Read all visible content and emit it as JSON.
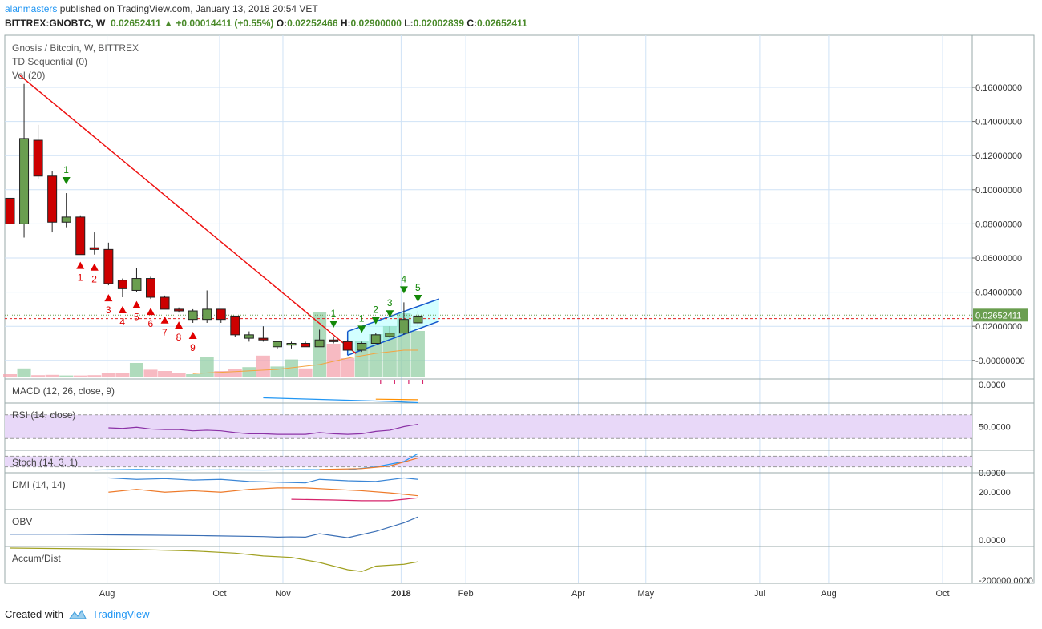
{
  "header": {
    "author": "alanmasters",
    "published_text": "published on TradingView.com, January 13, 2018 20:54 VET"
  },
  "ohlc_line": {
    "symbol": "BITTREX:GNOBTC, W",
    "last": "0.02652411",
    "change": "+0.00014411 (+0.55%)",
    "o_label": "O:",
    "o": "0.02252466",
    "h_label": "H:",
    "h": "0.02900000",
    "l_label": "L:",
    "l": "0.02002839",
    "c_label": "C:",
    "c": "0.02652411"
  },
  "footer": {
    "created_with": "Created with",
    "brand": "TradingView"
  },
  "chart_data": {
    "type": "candlestick",
    "title": "Gnosis / Bitcoin, W, BITTREX",
    "indicators": [
      "TD Sequential (0)",
      "Vol (20)"
    ],
    "price_axis": {
      "ticks": [
        0.16,
        0.14,
        0.12,
        0.1,
        0.08,
        0.06,
        0.04,
        0.02,
        0.0
      ],
      "tick_labels": [
        "0.16000000",
        "0.14000000",
        "0.12000000",
        "0.10000000",
        "0.08000000",
        "0.06000000",
        "0.04000000",
        "0.02000000",
        "-0.00000000"
      ],
      "ylim": [
        -0.002,
        0.172
      ],
      "last_price_label": "0.02652411",
      "last_price": 0.02652411,
      "prev_close_line": 0.0245
    },
    "x_axis": {
      "labels": [
        "Aug",
        "Oct",
        "Nov",
        "2018",
        "Feb",
        "Apr",
        "May",
        "Jul",
        "Aug",
        "Oct"
      ],
      "positions_week_index": [
        6.9,
        14.9,
        19.4,
        27.8,
        32.4,
        40.4,
        45.2,
        53.3,
        58.2,
        66.3
      ]
    },
    "candles": [
      {
        "o": 0.095,
        "h": 0.098,
        "l": 0.08,
        "c": 0.08
      },
      {
        "o": 0.08,
        "h": 0.162,
        "l": 0.072,
        "c": 0.13
      },
      {
        "o": 0.129,
        "h": 0.138,
        "l": 0.106,
        "c": 0.108
      },
      {
        "o": 0.108,
        "h": 0.111,
        "l": 0.075,
        "c": 0.081
      },
      {
        "o": 0.081,
        "h": 0.098,
        "l": 0.078,
        "c": 0.084
      },
      {
        "o": 0.084,
        "h": 0.085,
        "l": 0.063,
        "c": 0.062
      },
      {
        "o": 0.066,
        "h": 0.075,
        "l": 0.062,
        "c": 0.065
      },
      {
        "o": 0.065,
        "h": 0.069,
        "l": 0.044,
        "c": 0.045
      },
      {
        "o": 0.047,
        "h": 0.048,
        "l": 0.037,
        "c": 0.042
      },
      {
        "o": 0.041,
        "h": 0.054,
        "l": 0.04,
        "c": 0.048
      },
      {
        "o": 0.048,
        "h": 0.049,
        "l": 0.036,
        "c": 0.037
      },
      {
        "o": 0.037,
        "h": 0.038,
        "l": 0.031,
        "c": 0.03
      },
      {
        "o": 0.03,
        "h": 0.031,
        "l": 0.028,
        "c": 0.029
      },
      {
        "o": 0.024,
        "h": 0.03,
        "l": 0.022,
        "c": 0.029
      },
      {
        "o": 0.024,
        "h": 0.041,
        "l": 0.022,
        "c": 0.03
      },
      {
        "o": 0.03,
        "h": 0.03,
        "l": 0.022,
        "c": 0.024
      },
      {
        "o": 0.026,
        "h": 0.026,
        "l": 0.014,
        "c": 0.015
      },
      {
        "o": 0.013,
        "h": 0.017,
        "l": 0.011,
        "c": 0.015
      },
      {
        "o": 0.013,
        "h": 0.02,
        "l": 0.011,
        "c": 0.012
      },
      {
        "o": 0.008,
        "h": 0.011,
        "l": 0.007,
        "c": 0.011
      },
      {
        "o": 0.009,
        "h": 0.011,
        "l": 0.007,
        "c": 0.01
      },
      {
        "o": 0.01,
        "h": 0.011,
        "l": 0.008,
        "c": 0.008
      },
      {
        "o": 0.008,
        "h": 0.018,
        "l": 0.008,
        "c": 0.012
      },
      {
        "o": 0.012,
        "h": 0.014,
        "l": 0.01,
        "c": 0.011
      },
      {
        "o": 0.011,
        "h": 0.012,
        "l": 0.006,
        "c": 0.006
      },
      {
        "o": 0.006,
        "h": 0.011,
        "l": 0.005,
        "c": 0.01
      },
      {
        "o": 0.01,
        "h": 0.016,
        "l": 0.01,
        "c": 0.015
      },
      {
        "o": 0.014,
        "h": 0.02,
        "l": 0.013,
        "c": 0.016
      },
      {
        "o": 0.016,
        "h": 0.034,
        "l": 0.015,
        "c": 0.024
      },
      {
        "o": 0.022,
        "h": 0.029,
        "l": 0.02,
        "c": 0.026
      }
    ],
    "volume": [
      0.1,
      0.28,
      0.07,
      0.08,
      0.06,
      0.06,
      0.07,
      0.14,
      0.13,
      0.45,
      0.24,
      0.2,
      0.15,
      0.1,
      0.65,
      0.2,
      0.25,
      0.32,
      0.68,
      0.34,
      0.56,
      0.28,
      2.05,
      1.05,
      0.6,
      1.15,
      1.35,
      1.6,
      2.0,
      1.45
    ],
    "td_labels": [
      {
        "i": 4,
        "n": "1",
        "color": "#138808",
        "dir": "down"
      },
      {
        "i": 5,
        "n": "1",
        "color": "#e00000",
        "dir": "up"
      },
      {
        "i": 6,
        "n": "2",
        "color": "#e00000",
        "dir": "up"
      },
      {
        "i": 7,
        "n": "3",
        "color": "#e00000",
        "dir": "up"
      },
      {
        "i": 8,
        "n": "4",
        "color": "#e00000",
        "dir": "up"
      },
      {
        "i": 9,
        "n": "5",
        "color": "#e00000",
        "dir": "up"
      },
      {
        "i": 10,
        "n": "6",
        "color": "#e00000",
        "dir": "up"
      },
      {
        "i": 11,
        "n": "7",
        "color": "#e00000",
        "dir": "up"
      },
      {
        "i": 12,
        "n": "8",
        "color": "#e00000",
        "dir": "up"
      },
      {
        "i": 13,
        "n": "9",
        "color": "#e00000",
        "dir": "up"
      },
      {
        "i": 23,
        "n": "1",
        "color": "#138808",
        "dir": "down"
      },
      {
        "i": 25,
        "n": "1",
        "color": "#138808",
        "dir": "down"
      },
      {
        "i": 26,
        "n": "2",
        "color": "#138808",
        "dir": "down"
      },
      {
        "i": 27,
        "n": "3",
        "color": "#138808",
        "dir": "down"
      },
      {
        "i": 28,
        "n": "4",
        "color": "#138808",
        "dir": "down"
      },
      {
        "i": 29,
        "n": "5",
        "color": "#138808",
        "dir": "down"
      }
    ],
    "macd": {
      "label": "MACD (12, 26, close, 9)",
      "tick_label": "0.0000",
      "macd_line": [
        [
          18,
          -0.003
        ],
        [
          21,
          -0.002
        ],
        [
          24,
          -0.001
        ],
        [
          27,
          0.0
        ],
        [
          29,
          0.001
        ]
      ],
      "signal_line": [
        [
          26,
          -0.004
        ],
        [
          29,
          -0.003
        ]
      ]
    },
    "rsi": {
      "label": "RSI (14, close)",
      "tick_label": "50.0000",
      "band": [
        30,
        70
      ],
      "values": [
        [
          7,
          48
        ],
        [
          8,
          47
        ],
        [
          9,
          49
        ],
        [
          10,
          46
        ],
        [
          11,
          45
        ],
        [
          12,
          45
        ],
        [
          13,
          43
        ],
        [
          14,
          44
        ],
        [
          15,
          43
        ],
        [
          16,
          40
        ],
        [
          17,
          38
        ],
        [
          18,
          38
        ],
        [
          19,
          37
        ],
        [
          20,
          37
        ],
        [
          21,
          37
        ],
        [
          22,
          40
        ],
        [
          23,
          38
        ],
        [
          24,
          37
        ],
        [
          25,
          38
        ],
        [
          26,
          42
        ],
        [
          27,
          44
        ],
        [
          28,
          50
        ],
        [
          29,
          54
        ]
      ]
    },
    "stoch": {
      "label": "Stoch (14, 3, 1)",
      "tick_label": "0.0000",
      "k": [
        [
          6,
          2
        ],
        [
          9,
          5
        ],
        [
          12,
          2
        ],
        [
          15,
          3
        ],
        [
          18,
          2
        ],
        [
          21,
          4
        ],
        [
          24,
          3
        ],
        [
          26,
          20
        ],
        [
          28,
          50
        ],
        [
          29,
          95
        ]
      ],
      "d": [
        [
          22,
          5
        ],
        [
          25,
          10
        ],
        [
          27,
          25
        ],
        [
          29,
          70
        ]
      ]
    },
    "dmi": {
      "label": "DMI (14, 14)",
      "tick_label": "20.0000",
      "plus": [
        [
          7,
          40
        ],
        [
          9,
          38
        ],
        [
          11,
          39
        ],
        [
          13,
          37
        ],
        [
          15,
          38
        ],
        [
          17,
          35
        ],
        [
          19,
          34
        ],
        [
          21,
          33
        ],
        [
          22,
          38
        ],
        [
          24,
          36
        ],
        [
          26,
          35
        ],
        [
          28,
          40
        ],
        [
          29,
          38
        ]
      ],
      "minus": [
        [
          7,
          20
        ],
        [
          9,
          24
        ],
        [
          11,
          20
        ],
        [
          13,
          22
        ],
        [
          15,
          20
        ],
        [
          17,
          24
        ],
        [
          19,
          26
        ],
        [
          21,
          26
        ],
        [
          23,
          24
        ],
        [
          25,
          22
        ],
        [
          27,
          19
        ],
        [
          29,
          15
        ]
      ],
      "adx": [
        [
          20,
          10
        ],
        [
          23,
          9
        ],
        [
          25,
          8
        ],
        [
          27,
          8
        ],
        [
          29,
          12
        ]
      ]
    },
    "obv": {
      "label": "OBV",
      "tick_label": "0.0000",
      "values": [
        [
          0,
          20
        ],
        [
          4,
          20
        ],
        [
          7,
          18
        ],
        [
          10,
          17
        ],
        [
          14,
          15
        ],
        [
          18,
          12
        ],
        [
          19,
          10
        ],
        [
          20,
          11
        ],
        [
          21,
          10
        ],
        [
          22,
          22
        ],
        [
          23,
          15
        ],
        [
          24,
          8
        ],
        [
          26,
          30
        ],
        [
          28,
          60
        ],
        [
          29,
          80
        ]
      ]
    },
    "accum_dist": {
      "label": "Accum/Dist",
      "tick_label": "-200000.0000",
      "values": [
        [
          0,
          40
        ],
        [
          5,
          38
        ],
        [
          9,
          36
        ],
        [
          13,
          32
        ],
        [
          16,
          26
        ],
        [
          18,
          18
        ],
        [
          20,
          14
        ],
        [
          22,
          0
        ],
        [
          24,
          -20
        ],
        [
          25,
          -25
        ],
        [
          26,
          -10
        ],
        [
          28,
          -5
        ],
        [
          29,
          2
        ]
      ]
    },
    "drawings": {
      "downtrend_line": [
        [
          0.7,
          0.167
        ],
        [
          24.6,
          0.004
        ]
      ],
      "channel_upper": [
        [
          24,
          0.017
        ],
        [
          30.5,
          0.036
        ]
      ],
      "channel_lower": [
        [
          24,
          0.003
        ],
        [
          30.5,
          0.023
        ]
      ],
      "channel_fill": "#80ffff"
    },
    "colors": {
      "bull": "#6a9e50",
      "bear": "#cc0000",
      "vol_bull": "#94cfa5",
      "vol_bear": "#f4a3ad",
      "trend": "#ee1111",
      "channel": "#1357cc",
      "rsi_band": "#e8d8f8",
      "rsi_line": "#8b32a6",
      "macd": "#2196f3",
      "signal": "#ff8f00",
      "dmi_plus": "#3b86d6",
      "dmi_minus": "#ee7a2a",
      "adx": "#d6246b",
      "obv": "#3b6fb5",
      "ad": "#a0a020",
      "grid": "#cfe2f6"
    }
  }
}
